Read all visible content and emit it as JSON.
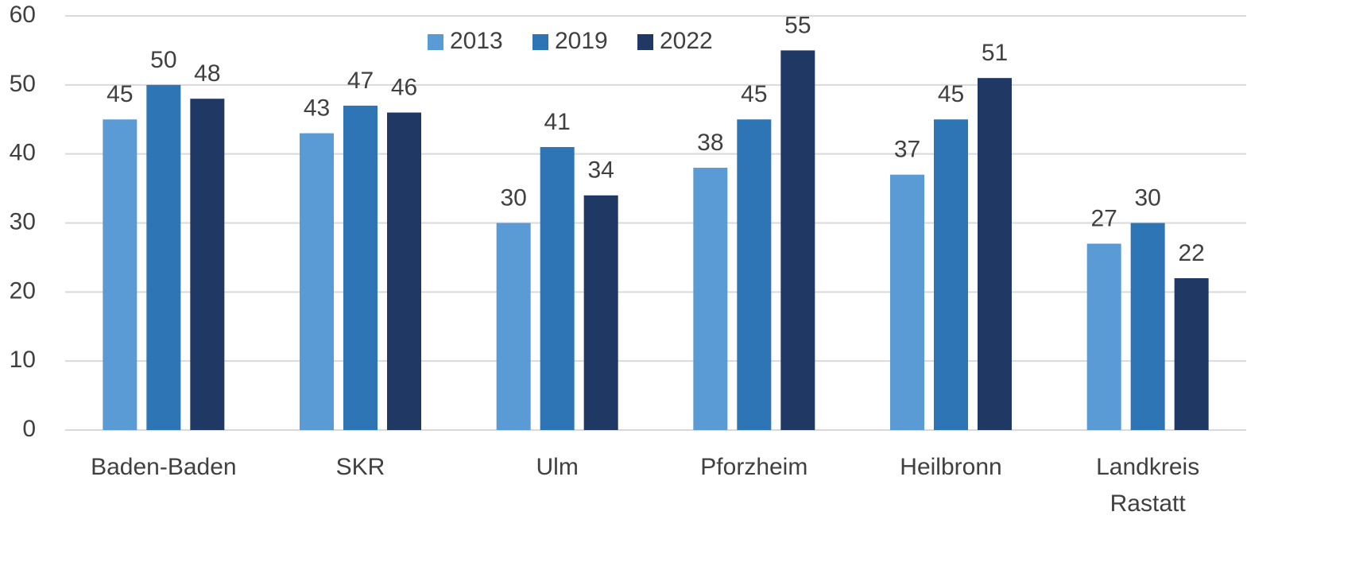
{
  "chart_data": {
    "type": "bar",
    "categories": [
      "Baden-Baden",
      "SKR",
      "Ulm",
      "Pforzheim",
      "Heilbronn",
      "Landkreis Rastatt"
    ],
    "series": [
      {
        "name": "2013",
        "color": "#5b9bd5",
        "values": [
          45,
          43,
          30,
          38,
          37,
          27
        ]
      },
      {
        "name": "2019",
        "color": "#2e75b6",
        "values": [
          50,
          47,
          41,
          45,
          45,
          30
        ]
      },
      {
        "name": "2022",
        "color": "#203864",
        "values": [
          48,
          46,
          34,
          55,
          51,
          22
        ]
      }
    ],
    "ylim": [
      0,
      60
    ],
    "yticks": [
      0,
      10,
      20,
      30,
      40,
      50,
      60
    ],
    "grid": true,
    "legend": "top"
  }
}
